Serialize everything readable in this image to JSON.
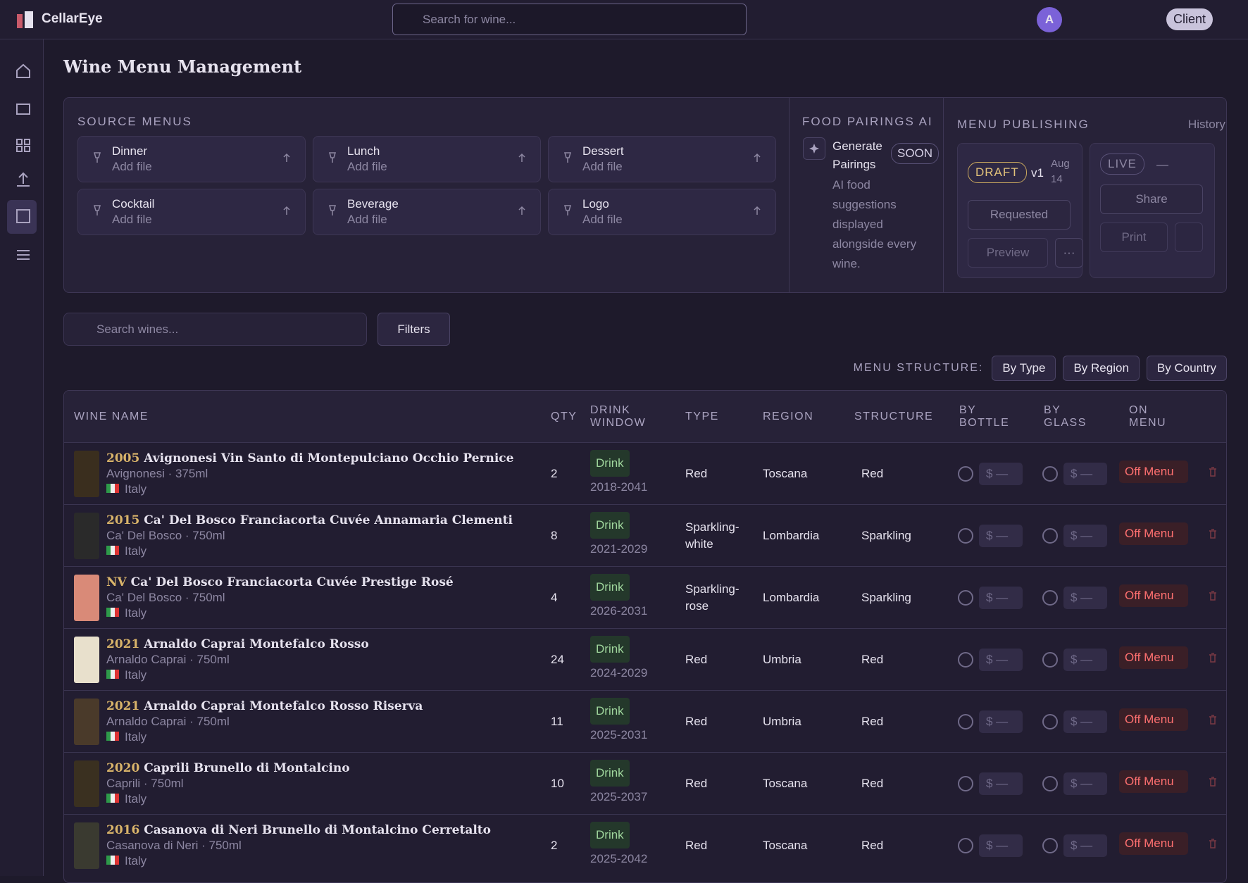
{
  "header": {
    "brand": "CellarEye",
    "search_placeholder": "Search for wine...",
    "avatar": "A",
    "role": "Client"
  },
  "page_title": "Wine Menu Management",
  "source_menus": {
    "title": "SOURCE MENUS",
    "items": [
      {
        "name": "Dinner",
        "action": "Add file"
      },
      {
        "name": "Lunch",
        "action": "Add file"
      },
      {
        "name": "Dessert",
        "action": "Add file"
      },
      {
        "name": "Cocktail",
        "action": "Add file"
      },
      {
        "name": "Beverage",
        "action": "Add file"
      },
      {
        "name": "Logo",
        "action": "Add file"
      }
    ]
  },
  "food_pairings": {
    "title": "FOOD PAIRINGS AI",
    "button": "Generate Pairings",
    "badge": "SOON",
    "description": "AI food suggestions displayed alongside every wine."
  },
  "publishing": {
    "title": "MENU PUBLISHING",
    "history": "History",
    "draft": {
      "status": "DRAFT",
      "version": "v1",
      "date": "Aug 14",
      "requested": "Requested",
      "preview": "Preview",
      "more": "···"
    },
    "live": {
      "status": "LIVE",
      "date": "—",
      "share": "Share",
      "print": "Print"
    }
  },
  "toolbar": {
    "search_placeholder": "Search wines...",
    "filters": "Filters"
  },
  "structure": {
    "label": "MENU STRUCTURE:",
    "options": [
      "By Type",
      "By Region",
      "By Country"
    ]
  },
  "table": {
    "columns": [
      "WINE NAME",
      "QTY",
      "DRINK WINDOW",
      "TYPE",
      "REGION",
      "STRUCTURE",
      "BY BOTTLE",
      "BY GLASS",
      "ON MENU"
    ],
    "rows": [
      {
        "year": "2005",
        "name": "Avignonesi Vin Santo di Montepulciano Occhio Pernice",
        "details": "Avignonesi · 375ml",
        "country": "Italy",
        "qty": 2,
        "drink": "Drink",
        "window": "2018-2041",
        "type": "Red",
        "region": "Toscana",
        "structure": "Red",
        "bottle_price": "$ —",
        "glass_price": "$ —",
        "on_menu": "Off Menu"
      },
      {
        "year": "2015",
        "name": "Ca' Del Bosco Franciacorta Cuvée Annamaria Clementi",
        "details": "Ca' Del Bosco · 750ml",
        "country": "Italy",
        "qty": 8,
        "drink": "Drink",
        "window": "2021-2029",
        "type": "Sparkling-white",
        "region": "Lombardia",
        "structure": "Sparkling",
        "bottle_price": "$ —",
        "glass_price": "$ —",
        "on_menu": "Off Menu"
      },
      {
        "year": "NV",
        "name": "Ca' Del Bosco Franciacorta Cuvée Prestige Rosé",
        "details": "Ca' Del Bosco · 750ml",
        "country": "Italy",
        "qty": 4,
        "drink": "Drink",
        "window": "2026-2031",
        "type": "Sparkling-rose",
        "region": "Lombardia",
        "structure": "Sparkling",
        "bottle_price": "$ —",
        "glass_price": "$ —",
        "on_menu": "Off Menu"
      },
      {
        "year": "2021",
        "name": "Arnaldo Caprai Montefalco Rosso",
        "details": "Arnaldo Caprai · 750ml",
        "country": "Italy",
        "qty": 24,
        "drink": "Drink",
        "window": "2024-2029",
        "type": "Red",
        "region": "Umbria",
        "structure": "Red",
        "bottle_price": "$ —",
        "glass_price": "$ —",
        "on_menu": "Off Menu"
      },
      {
        "year": "2021",
        "name": "Arnaldo Caprai Montefalco Rosso Riserva",
        "details": "Arnaldo Caprai · 750ml",
        "country": "Italy",
        "qty": 11,
        "drink": "Drink",
        "window": "2025-2031",
        "type": "Red",
        "region": "Umbria",
        "structure": "Red",
        "bottle_price": "$ —",
        "glass_price": "$ —",
        "on_menu": "Off Menu"
      },
      {
        "year": "2020",
        "name": "Caprili Brunello di Montalcino",
        "details": "Caprili · 750ml",
        "country": "Italy",
        "qty": 10,
        "drink": "Drink",
        "window": "2025-2037",
        "type": "Red",
        "region": "Toscana",
        "structure": "Red",
        "bottle_price": "$ —",
        "glass_price": "$ —",
        "on_menu": "Off Menu"
      },
      {
        "year": "2016",
        "name": "Casanova di Neri Brunello di Montalcino Cerretalto",
        "details": "Casanova di Neri · 750ml",
        "country": "Italy",
        "qty": 2,
        "drink": "Drink",
        "window": "2025-2042",
        "type": "Red",
        "region": "Toscana",
        "structure": "Red",
        "bottle_price": "$ —",
        "glass_price": "$ —",
        "on_menu": "Off Menu"
      }
    ]
  }
}
